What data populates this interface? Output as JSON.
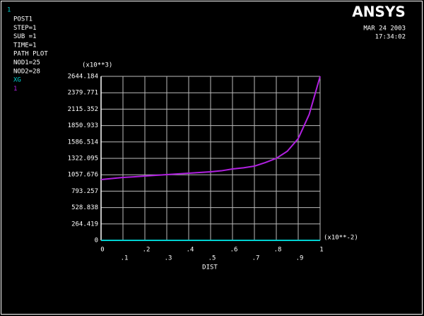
{
  "chart_data": {
    "type": "line",
    "window_number": "1",
    "info_lines": [
      "POST1",
      "STEP=1",
      "SUB =1",
      "TIME=1",
      "PATH PLOT",
      "NOD1=25",
      "NOD2=28"
    ],
    "logo": "ANSYS",
    "date": "MAR 24 2003",
    "time": "17:34:02",
    "y_multiplier": "(x10**3)",
    "x_multiplier": "(x10**-2)",
    "xlabel": "DIST",
    "x": [
      0,
      0.05,
      0.1,
      0.15,
      0.2,
      0.25,
      0.3,
      0.35,
      0.4,
      0.45,
      0.5,
      0.55,
      0.6,
      0.65,
      0.7,
      0.75,
      0.8,
      0.85,
      0.9,
      0.95,
      1
    ],
    "series": [
      {
        "name": "XG",
        "color": "#00d0d0",
        "values": [
          0,
          0,
          0,
          0,
          0,
          0,
          0,
          0,
          0,
          0,
          0,
          0,
          0,
          0,
          0,
          0,
          0,
          0,
          0,
          0,
          0
        ]
      },
      {
        "name": "1",
        "color": "#b020e0",
        "values": [
          980,
          997,
          1014,
          1025,
          1037,
          1048,
          1060,
          1071,
          1083,
          1094,
          1105,
          1122,
          1151,
          1170,
          1197,
          1254,
          1322,
          1436,
          1641,
          2029,
          2644.184
        ]
      }
    ],
    "xlim": [
      0,
      1
    ],
    "xticks": [
      0,
      {
        "value": 0.1,
        "label": ".1"
      },
      {
        "value": 0.2,
        "label": ".2"
      },
      {
        "value": 0.3,
        "label": ".3"
      },
      {
        "value": 0.4,
        "label": ".4"
      },
      {
        "value": 0.5,
        "label": ".5"
      },
      {
        "value": 0.6,
        "label": ".6"
      },
      {
        "value": 0.7,
        "label": ".7"
      },
      {
        "value": 0.8,
        "label": ".8"
      },
      {
        "value": 0.9,
        "label": ".9"
      },
      1
    ],
    "ylim": [
      0,
      2644.184
    ],
    "yticks": [
      0,
      264.419,
      528.838,
      793.257,
      1057.676,
      1322.095,
      1586.514,
      1850.933,
      2115.352,
      2379.771,
      2644.184
    ],
    "grid": true
  }
}
